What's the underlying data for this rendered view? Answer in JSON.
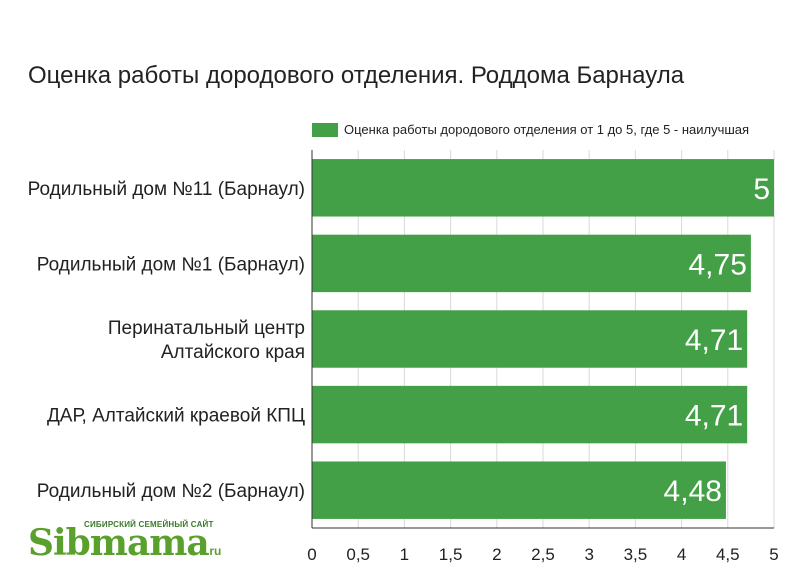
{
  "chart_data": {
    "type": "bar",
    "orientation": "horizontal",
    "title": "Оценка работы дородового отделения. Роддома Барнаула",
    "legend": {
      "label": "Оценка работы дородового отделения от 1 до 5, где 5 - наилучшая",
      "position": "top"
    },
    "categories": [
      [
        "Родильный дом №11 (Барнаул)"
      ],
      [
        "Родильный дом №1 (Барнаул)"
      ],
      [
        "Перинатальный центр",
        "Алтайского края"
      ],
      [
        "ДАР, Алтайский краевой КПЦ"
      ],
      [
        "Родильный дом №2 (Барнаул)"
      ]
    ],
    "values": [
      5,
      4.75,
      4.71,
      4.71,
      4.48
    ],
    "value_labels": [
      "5",
      "4,75",
      "4,71",
      "4,71",
      "4,48"
    ],
    "xlim": [
      0,
      5
    ],
    "xticks": [
      0,
      0.5,
      1,
      1.5,
      2,
      2.5,
      3,
      3.5,
      4,
      4.5,
      5
    ],
    "xtick_labels": [
      "0",
      "0,5",
      "1",
      "1,5",
      "2",
      "2,5",
      "3",
      "3,5",
      "4",
      "4,5",
      "5"
    ],
    "grid": true,
    "bar_color": "#43a047"
  },
  "logo": {
    "tagline": "СИБИРСКИЙ СЕМЕЙНЫЙ САЙТ",
    "wordmark": "Sibmama",
    "domain": ".ru"
  }
}
